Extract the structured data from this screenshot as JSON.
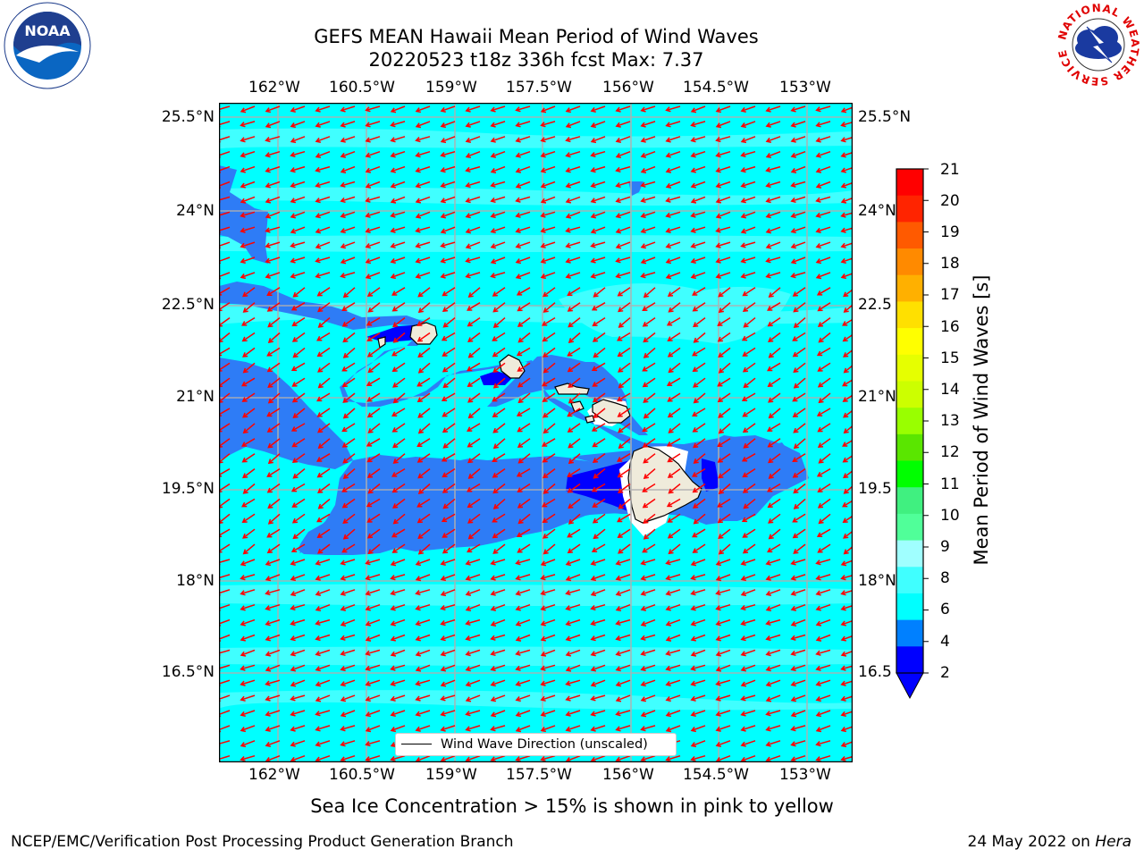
{
  "title": {
    "line1": "GEFS MEAN Hawaii Mean Period of Wind Waves",
    "line2": "20220523 t18z 336h fcst   Max: 7.37"
  },
  "logos": {
    "left": "NOAA",
    "left_ring": "NATIONAL OCEANIC AND ATMOSPHERIC ADMINISTRATION · U.S. DEPARTMENT OF COMMERCE",
    "right": "NATIONAL WEATHER SERVICE"
  },
  "map": {
    "lon_ticks": [
      "162°W",
      "160.5°W",
      "159°W",
      "157.5°W",
      "156°W",
      "154.5°W",
      "153°W"
    ],
    "lat_ticks": [
      "25.5°N",
      "24°N",
      "22.5°N",
      "21°N",
      "19.5°N",
      "18°N",
      "16.5°N"
    ],
    "lat_ticks_right": [
      "25.5°N",
      "24°N",
      "22.5",
      "21°N",
      "19.5",
      "18°N",
      "16.5"
    ],
    "legend": "Wind Wave Direction (unscaled)",
    "colors": {
      "ocean_light": "#00ffff",
      "ocean_mid": "#40ffff",
      "ocean_dark": "#2e7cf6",
      "ocean_deep": "#0000ff",
      "land": "#efebdb",
      "arrow": "#ff0000"
    }
  },
  "colorbar": {
    "label": "Mean Period of Wind Waves [s]",
    "ticks": [
      "21",
      "20",
      "19",
      "18",
      "17",
      "16",
      "15",
      "14",
      "13",
      "12",
      "11",
      "10",
      "9",
      "8",
      "6",
      "4",
      "2"
    ],
    "colors": [
      "#ff0000",
      "#ff2400",
      "#ff5a00",
      "#ff8a00",
      "#ffb000",
      "#ffe000",
      "#ffff00",
      "#e6ff00",
      "#ccff00",
      "#99ff00",
      "#5ae600",
      "#00ff00",
      "#40f080",
      "#50ff99",
      "#a0ffff",
      "#40ffff",
      "#00ffff",
      "#0080ff",
      "#0000ff"
    ]
  },
  "notes": {
    "sea_ice": "Sea Ice Concentration > 15% is shown in pink to yellow"
  },
  "footer": {
    "left": "NCEP/EMC/Verification Post Processing Product Generation Branch",
    "right_date": "24 May 2022 on ",
    "right_host": "Hera"
  }
}
